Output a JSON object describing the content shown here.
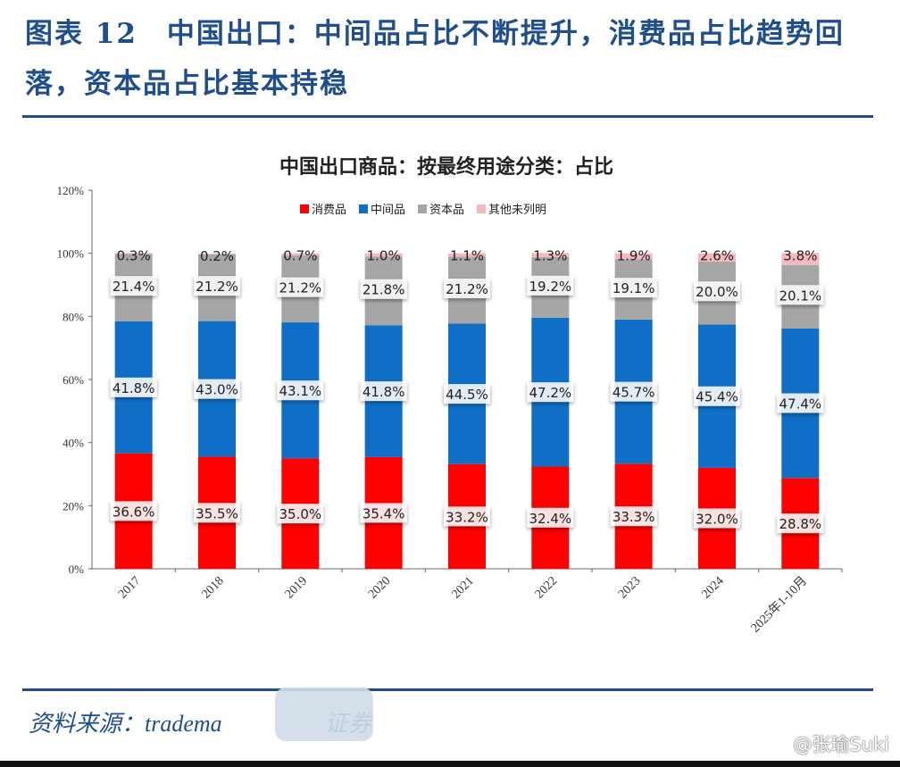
{
  "figure": {
    "title": "图表 12　中国出口：中间品占比不断提升，消费品占比趋势回落，资本品占比基本持稳",
    "source": "资料来源：tradema",
    "source_tail": "证券",
    "watermark": "@张瑜Suki"
  },
  "chart_data": {
    "type": "bar",
    "stacked": true,
    "title": "中国出口商品：按最终用途分类：占比",
    "xlabel": "",
    "ylabel": "",
    "ylim": [
      0,
      120
    ],
    "yticks": [
      "0%",
      "20%",
      "40%",
      "60%",
      "80%",
      "100%",
      "120%"
    ],
    "grid": false,
    "legend_position": "top-right",
    "categories": [
      "2017",
      "2018",
      "2019",
      "2020",
      "2021",
      "2022",
      "2023",
      "2024",
      "2025年1-10月"
    ],
    "series": [
      {
        "name": "消费品",
        "color": "#ff0000",
        "values": [
          36.6,
          35.5,
          35.0,
          35.4,
          33.2,
          32.4,
          33.3,
          32.0,
          28.8
        ],
        "labels": [
          "36.6%",
          "35.5%",
          "35.0%",
          "35.4%",
          "33.2%",
          "32.4%",
          "33.3%",
          "32.0%",
          "28.8%"
        ]
      },
      {
        "name": "中间品",
        "color": "#0f6fc6",
        "values": [
          41.8,
          43.0,
          43.1,
          41.8,
          44.5,
          47.2,
          45.7,
          45.4,
          47.4
        ],
        "labels": [
          "41.8%",
          "43.0%",
          "43.1%",
          "41.8%",
          "44.5%",
          "47.2%",
          "45.7%",
          "45.4%",
          "47.4%"
        ]
      },
      {
        "name": "资本品",
        "color": "#a6a6a6",
        "values": [
          21.4,
          21.2,
          21.2,
          21.8,
          21.2,
          19.2,
          19.1,
          20.0,
          20.1
        ],
        "labels": [
          "21.4%",
          "21.2%",
          "21.2%",
          "21.8%",
          "21.2%",
          "19.2%",
          "19.1%",
          "20.0%",
          "20.1%"
        ]
      },
      {
        "name": "其他未列明",
        "color": "#f4b8be",
        "values": [
          0.3,
          0.2,
          0.7,
          1.0,
          1.1,
          1.3,
          1.9,
          2.6,
          3.8
        ],
        "labels": [
          "0.3%",
          "0.2%",
          "0.7%",
          "1.0%",
          "1.1%",
          "1.3%",
          "1.9%",
          "2.6%",
          "3.8%"
        ]
      }
    ]
  }
}
